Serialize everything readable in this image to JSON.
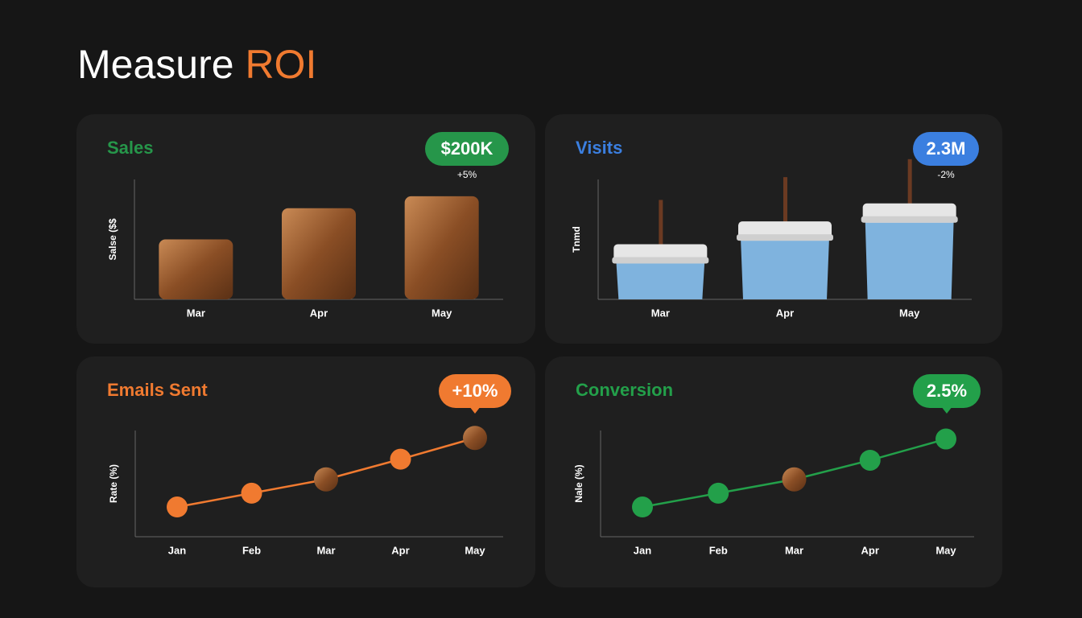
{
  "title": "Measure",
  "title_accent": "ROI",
  "chart_data": [
    {
      "type": "bar",
      "title": "Sales",
      "badge": "$200K",
      "change": "+5%",
      "ylabel": "Salse ($$",
      "categories": [
        "Mar",
        "Apr",
        "May"
      ],
      "values": [
        50,
        76,
        86
      ],
      "ylim": [
        0,
        100
      ],
      "color": "#9a5a2e",
      "accent": "#26964a"
    },
    {
      "type": "cup",
      "title": "Visits",
      "badge": "2.3M",
      "change": "-2%",
      "ylabel": "Tnmd",
      "categories": [
        "Mar",
        "Apr",
        "May"
      ],
      "values": [
        46,
        65,
        80
      ],
      "ylim": [
        0,
        100
      ],
      "color": "#7fb3de",
      "accent": "#3b7fe0"
    },
    {
      "type": "line",
      "title": "Emails Sent",
      "badge": "+10%",
      "ylabel": "Rate (%)",
      "categories": [
        "Jan",
        "Feb",
        "Mar",
        "Apr",
        "May"
      ],
      "values": [
        28,
        41,
        54,
        73,
        93
      ],
      "ylim": [
        0,
        100
      ],
      "color": "#f07a30",
      "accent": "#f07a30"
    },
    {
      "type": "line",
      "title": "Conversion",
      "badge": "2.5%",
      "ylabel": "Nale (%)",
      "categories": [
        "Jan",
        "Feb",
        "Mar",
        "Apr",
        "May"
      ],
      "values": [
        28,
        41,
        54,
        72,
        92
      ],
      "ylim": [
        0,
        100
      ],
      "color": "#23a04a",
      "accent": "#23a04a"
    }
  ]
}
